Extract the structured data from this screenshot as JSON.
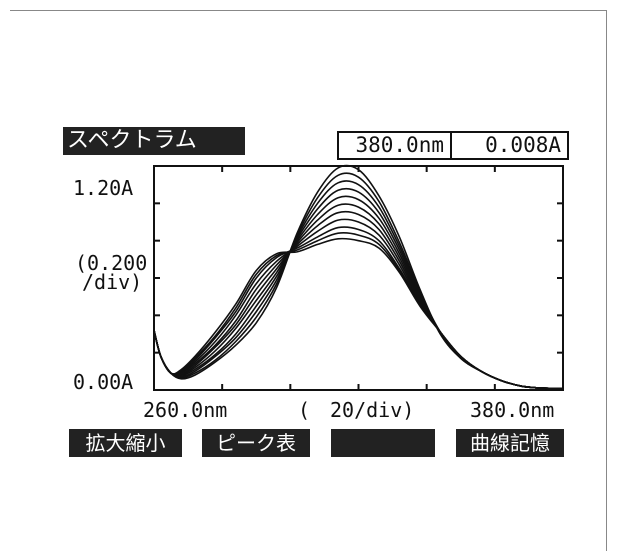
{
  "screen": {
    "title": "スペクトラム",
    "readout_wavelength": "380.0nm",
    "readout_absorbance": "0.008A"
  },
  "axes": {
    "y_max_label": "1.20A",
    "y_min_label": "0.00A",
    "y_scale_line1": "(0.200",
    "y_scale_line2": "/div)",
    "x_min_label": "260.0nm",
    "x_scale_open": "(",
    "x_scale_label": "20/div)",
    "x_max_label": "380.0nm"
  },
  "function_keys": {
    "zoom": "拡大縮小",
    "peak_table": "ピーク表",
    "blank": "",
    "save_curve": "曲線記憶"
  },
  "chart_data": {
    "type": "line",
    "x_unit": "nm",
    "y_unit": "A",
    "xlim": [
      260,
      380
    ],
    "ylim": [
      0,
      1.2
    ],
    "x_tick_step": 20,
    "y_tick_step": 0.2,
    "xlabel": "",
    "ylabel": "",
    "grid": false,
    "x": [
      260,
      262,
      265,
      268,
      272,
      278,
      284,
      290,
      296,
      302,
      308,
      314,
      320,
      326,
      332,
      338,
      344,
      350,
      356,
      362,
      368,
      374,
      380
    ],
    "series": [
      {
        "values": [
          0.32,
          0.18,
          0.09,
          0.06,
          0.08,
          0.15,
          0.24,
          0.36,
          0.55,
          0.84,
          1.06,
          1.19,
          1.18,
          1.04,
          0.82,
          0.54,
          0.3,
          0.17,
          0.1,
          0.05,
          0.02,
          0.01,
          0.008
        ]
      },
      {
        "values": [
          0.32,
          0.18,
          0.09,
          0.065,
          0.09,
          0.16,
          0.26,
          0.39,
          0.57,
          0.83,
          1.03,
          1.15,
          1.14,
          1.01,
          0.79,
          0.53,
          0.3,
          0.17,
          0.1,
          0.05,
          0.02,
          0.01,
          0.008
        ]
      },
      {
        "values": [
          0.32,
          0.18,
          0.09,
          0.07,
          0.1,
          0.18,
          0.28,
          0.42,
          0.59,
          0.82,
          1.0,
          1.11,
          1.1,
          0.98,
          0.77,
          0.52,
          0.31,
          0.17,
          0.1,
          0.05,
          0.02,
          0.01,
          0.008
        ]
      },
      {
        "values": [
          0.32,
          0.18,
          0.09,
          0.075,
          0.11,
          0.19,
          0.3,
          0.45,
          0.61,
          0.81,
          0.97,
          1.07,
          1.06,
          0.95,
          0.75,
          0.51,
          0.31,
          0.17,
          0.1,
          0.05,
          0.02,
          0.01,
          0.008
        ]
      },
      {
        "values": [
          0.32,
          0.18,
          0.09,
          0.08,
          0.12,
          0.21,
          0.33,
          0.48,
          0.63,
          0.8,
          0.94,
          1.03,
          1.02,
          0.92,
          0.73,
          0.5,
          0.31,
          0.18,
          0.1,
          0.05,
          0.02,
          0.01,
          0.008
        ]
      },
      {
        "values": [
          0.32,
          0.18,
          0.09,
          0.085,
          0.13,
          0.23,
          0.35,
          0.51,
          0.65,
          0.79,
          0.91,
          0.99,
          0.98,
          0.89,
          0.71,
          0.49,
          0.31,
          0.18,
          0.1,
          0.05,
          0.02,
          0.01,
          0.008
        ]
      },
      {
        "values": [
          0.32,
          0.18,
          0.09,
          0.09,
          0.14,
          0.24,
          0.37,
          0.54,
          0.67,
          0.78,
          0.88,
          0.95,
          0.94,
          0.86,
          0.69,
          0.48,
          0.31,
          0.18,
          0.1,
          0.05,
          0.02,
          0.01,
          0.008
        ]
      },
      {
        "values": [
          0.32,
          0.18,
          0.09,
          0.095,
          0.15,
          0.26,
          0.4,
          0.57,
          0.69,
          0.77,
          0.85,
          0.91,
          0.9,
          0.83,
          0.67,
          0.47,
          0.31,
          0.18,
          0.1,
          0.05,
          0.02,
          0.01,
          0.008
        ]
      },
      {
        "values": [
          0.32,
          0.18,
          0.09,
          0.1,
          0.16,
          0.28,
          0.42,
          0.6,
          0.71,
          0.76,
          0.82,
          0.87,
          0.86,
          0.8,
          0.65,
          0.46,
          0.31,
          0.18,
          0.1,
          0.05,
          0.02,
          0.01,
          0.008
        ]
      },
      {
        "values": [
          0.32,
          0.18,
          0.09,
          0.105,
          0.17,
          0.29,
          0.44,
          0.62,
          0.72,
          0.75,
          0.8,
          0.84,
          0.83,
          0.78,
          0.64,
          0.46,
          0.31,
          0.18,
          0.1,
          0.05,
          0.02,
          0.01,
          0.008
        ]
      },
      {
        "values": [
          0.32,
          0.18,
          0.09,
          0.11,
          0.18,
          0.31,
          0.46,
          0.64,
          0.73,
          0.74,
          0.78,
          0.81,
          0.8,
          0.76,
          0.63,
          0.45,
          0.31,
          0.18,
          0.1,
          0.05,
          0.02,
          0.01,
          0.008
        ]
      }
    ]
  }
}
